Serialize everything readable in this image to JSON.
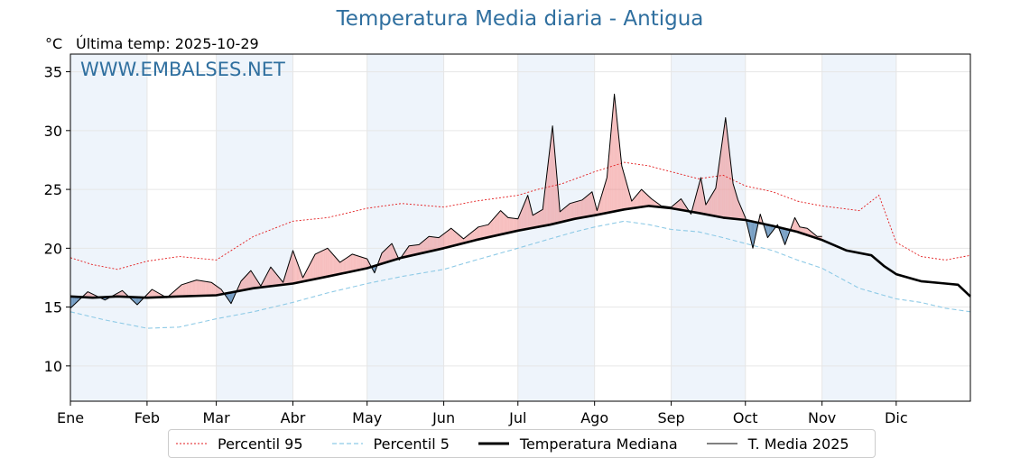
{
  "header": {
    "title": "Temperatura Media diaria - Antigua",
    "unit": "°C",
    "last_temp": "Última temp: 2025-10-29",
    "watermark": "WWW.EMBALSES.NET"
  },
  "legend": {
    "p95": "Percentil 95",
    "p5": "Percentil 5",
    "median": "Temperatura Mediana",
    "y2025": "T. Media 2025"
  },
  "colors": {
    "title": "#2f6f9f",
    "p95": "#e31a1c",
    "p5": "#8ecae6",
    "median": "#000000",
    "above": "#f08080",
    "below": "#4a7fb0",
    "month_band": "#eef4fb"
  },
  "chart_data": {
    "type": "line",
    "title": "Temperatura Media diaria - Antigua",
    "ylabel": "°C",
    "xlabel": "",
    "ylim": [
      7,
      36.5
    ],
    "xlim_days": [
      1,
      365
    ],
    "yticks": [
      10,
      15,
      20,
      25,
      30,
      35
    ],
    "months": [
      "Ene",
      "Feb",
      "Mar",
      "Abr",
      "May",
      "Jun",
      "Jul",
      "Ago",
      "Sep",
      "Oct",
      "Nov",
      "Dic"
    ],
    "month_start_day": [
      1,
      32,
      60,
      91,
      121,
      152,
      182,
      213,
      244,
      274,
      305,
      335
    ],
    "grid": true,
    "legend_position": "bottom",
    "series": [
      {
        "name": "Percentil 95",
        "style": "dotted-red",
        "points": [
          [
            1,
            19.2
          ],
          [
            10,
            18.6
          ],
          [
            20,
            18.2
          ],
          [
            32,
            18.9
          ],
          [
            45,
            19.3
          ],
          [
            60,
            19.0
          ],
          [
            75,
            21.0
          ],
          [
            91,
            22.3
          ],
          [
            105,
            22.6
          ],
          [
            121,
            23.4
          ],
          [
            135,
            23.8
          ],
          [
            152,
            23.5
          ],
          [
            165,
            24.0
          ],
          [
            182,
            24.5
          ],
          [
            190,
            25.0
          ],
          [
            200,
            25.5
          ],
          [
            213,
            26.5
          ],
          [
            225,
            27.3
          ],
          [
            235,
            27.0
          ],
          [
            244,
            26.5
          ],
          [
            255,
            25.9
          ],
          [
            265,
            26.2
          ],
          [
            274,
            25.3
          ],
          [
            285,
            24.8
          ],
          [
            295,
            24.0
          ],
          [
            305,
            23.6
          ],
          [
            320,
            23.2
          ],
          [
            328,
            24.5
          ],
          [
            335,
            20.5
          ],
          [
            345,
            19.3
          ],
          [
            355,
            19.0
          ],
          [
            365,
            19.4
          ]
        ]
      },
      {
        "name": "Percentil 5",
        "style": "dashed-lightblue",
        "points": [
          [
            1,
            14.6
          ],
          [
            15,
            13.9
          ],
          [
            32,
            13.2
          ],
          [
            45,
            13.3
          ],
          [
            60,
            14.0
          ],
          [
            75,
            14.6
          ],
          [
            91,
            15.4
          ],
          [
            105,
            16.2
          ],
          [
            121,
            17.0
          ],
          [
            135,
            17.6
          ],
          [
            152,
            18.2
          ],
          [
            165,
            19.0
          ],
          [
            182,
            20.0
          ],
          [
            195,
            20.8
          ],
          [
            205,
            21.4
          ],
          [
            213,
            21.8
          ],
          [
            225,
            22.3
          ],
          [
            235,
            22.0
          ],
          [
            244,
            21.6
          ],
          [
            255,
            21.4
          ],
          [
            265,
            20.9
          ],
          [
            274,
            20.4
          ],
          [
            285,
            19.8
          ],
          [
            295,
            19.0
          ],
          [
            305,
            18.3
          ],
          [
            320,
            16.6
          ],
          [
            335,
            15.7
          ],
          [
            345,
            15.4
          ],
          [
            355,
            14.9
          ],
          [
            365,
            14.6
          ]
        ]
      },
      {
        "name": "Temperatura Mediana",
        "style": "thick-black",
        "points": [
          [
            1,
            15.9
          ],
          [
            10,
            15.8
          ],
          [
            20,
            15.9
          ],
          [
            32,
            15.8
          ],
          [
            45,
            15.9
          ],
          [
            60,
            16.0
          ],
          [
            75,
            16.6
          ],
          [
            91,
            17.0
          ],
          [
            105,
            17.6
          ],
          [
            121,
            18.3
          ],
          [
            135,
            19.2
          ],
          [
            152,
            20.0
          ],
          [
            165,
            20.7
          ],
          [
            182,
            21.5
          ],
          [
            195,
            22.0
          ],
          [
            205,
            22.5
          ],
          [
            213,
            22.8
          ],
          [
            225,
            23.3
          ],
          [
            235,
            23.6
          ],
          [
            244,
            23.4
          ],
          [
            255,
            23.0
          ],
          [
            265,
            22.6
          ],
          [
            274,
            22.4
          ],
          [
            285,
            21.9
          ],
          [
            295,
            21.4
          ],
          [
            305,
            20.7
          ],
          [
            315,
            19.8
          ],
          [
            325,
            19.4
          ],
          [
            330,
            18.5
          ],
          [
            335,
            17.8
          ],
          [
            345,
            17.2
          ],
          [
            355,
            17.0
          ],
          [
            360,
            16.9
          ],
          [
            365,
            15.9
          ]
        ]
      },
      {
        "name": "T. Media 2025",
        "style": "thin-black",
        "points": [
          [
            1,
            14.9
          ],
          [
            8,
            16.3
          ],
          [
            15,
            15.6
          ],
          [
            22,
            16.4
          ],
          [
            28,
            15.2
          ],
          [
            34,
            16.5
          ],
          [
            40,
            15.8
          ],
          [
            46,
            16.9
          ],
          [
            52,
            17.3
          ],
          [
            58,
            17.1
          ],
          [
            62,
            16.5
          ],
          [
            66,
            15.3
          ],
          [
            70,
            17.2
          ],
          [
            74,
            18.1
          ],
          [
            78,
            16.8
          ],
          [
            82,
            18.4
          ],
          [
            87,
            17.1
          ],
          [
            91,
            19.8
          ],
          [
            95,
            17.5
          ],
          [
            100,
            19.5
          ],
          [
            105,
            20.0
          ],
          [
            110,
            18.8
          ],
          [
            115,
            19.5
          ],
          [
            121,
            19.1
          ],
          [
            124,
            17.9
          ],
          [
            127,
            19.6
          ],
          [
            131,
            20.4
          ],
          [
            134,
            19.0
          ],
          [
            138,
            20.2
          ],
          [
            142,
            20.3
          ],
          [
            146,
            21.0
          ],
          [
            150,
            20.9
          ],
          [
            155,
            21.7
          ],
          [
            160,
            20.8
          ],
          [
            166,
            21.8
          ],
          [
            170,
            22.0
          ],
          [
            175,
            23.2
          ],
          [
            178,
            22.6
          ],
          [
            182,
            22.5
          ],
          [
            186,
            24.5
          ],
          [
            188,
            22.8
          ],
          [
            192,
            23.3
          ],
          [
            196,
            30.4
          ],
          [
            199,
            23.1
          ],
          [
            203,
            23.8
          ],
          [
            208,
            24.1
          ],
          [
            212,
            24.8
          ],
          [
            214,
            23.2
          ],
          [
            218,
            26.0
          ],
          [
            221,
            33.1
          ],
          [
            224,
            27.0
          ],
          [
            228,
            24.0
          ],
          [
            232,
            25.0
          ],
          [
            236,
            24.2
          ],
          [
            240,
            23.6
          ],
          [
            244,
            23.5
          ],
          [
            248,
            24.2
          ],
          [
            252,
            22.9
          ],
          [
            256,
            26.0
          ],
          [
            258,
            23.7
          ],
          [
            262,
            25.1
          ],
          [
            266,
            31.1
          ],
          [
            269,
            25.5
          ],
          [
            271,
            24.1
          ],
          [
            274,
            22.6
          ],
          [
            277,
            20.0
          ],
          [
            280,
            22.9
          ],
          [
            283,
            20.9
          ],
          [
            287,
            22.0
          ],
          [
            290,
            20.3
          ],
          [
            294,
            22.6
          ],
          [
            296,
            21.8
          ],
          [
            299,
            21.7
          ],
          [
            303,
            21.0
          ],
          [
            305,
            21.0
          ]
        ]
      }
    ]
  }
}
